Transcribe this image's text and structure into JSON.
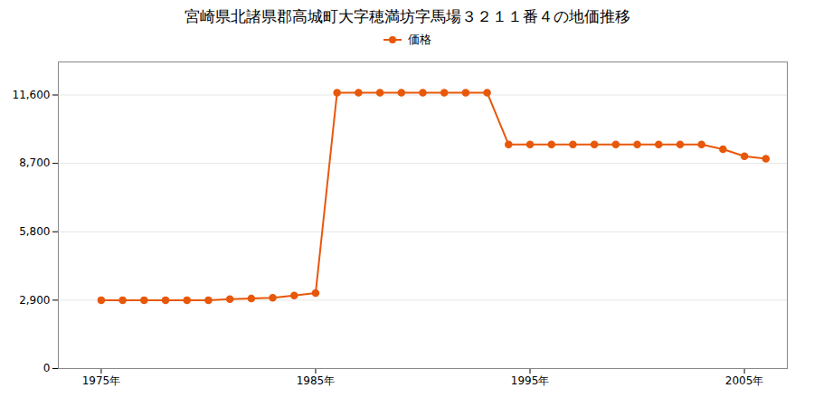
{
  "chart_data": {
    "type": "line",
    "title": "宮崎県北諸県郡高城町大字穂満坊字馬場３２１１番４の地価推移",
    "x": [
      1975,
      1976,
      1977,
      1978,
      1979,
      1980,
      1981,
      1982,
      1983,
      1984,
      1985,
      1986,
      1987,
      1988,
      1989,
      1990,
      1991,
      1992,
      1993,
      1994,
      1995,
      1996,
      1997,
      1998,
      1999,
      2000,
      2001,
      2002,
      2003,
      2004,
      2005,
      2006
    ],
    "series": [
      {
        "name": "価格",
        "color": "#E8580A",
        "marker": "circle",
        "values": [
          2900,
          2900,
          2900,
          2900,
          2900,
          2900,
          2940,
          2970,
          3000,
          3100,
          3200,
          11700,
          11700,
          11700,
          11700,
          11700,
          11700,
          11700,
          11700,
          9500,
          9500,
          9500,
          9500,
          9500,
          9500,
          9500,
          9500,
          9500,
          9500,
          9300,
          9000,
          8900
        ]
      }
    ],
    "xlim": [
      1973,
      2007
    ],
    "xticks": [
      {
        "value": 1975,
        "label": "1975年"
      },
      {
        "value": 1985,
        "label": "1985年"
      },
      {
        "value": 1995,
        "label": "1995年"
      },
      {
        "value": 2005,
        "label": "2005年"
      }
    ],
    "ylim": [
      0,
      13000
    ],
    "yticks": [
      0,
      {
        "value": 2900,
        "label": "2,900"
      },
      {
        "value": 5800,
        "label": "5,800"
      },
      {
        "value": 8700,
        "label": "8,700"
      },
      {
        "value": 11600,
        "label": "11,600"
      }
    ],
    "grid": "y",
    "legend": "top"
  }
}
